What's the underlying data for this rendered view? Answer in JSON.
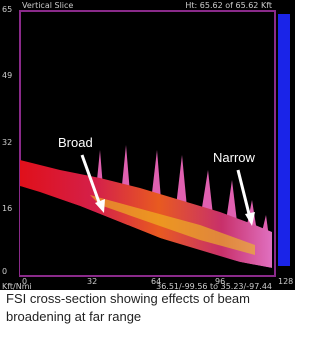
{
  "header": {
    "title": "Vertical Slice",
    "height": "Ht: 65.62 of 65.62 Kft"
  },
  "y_labels": [
    "65",
    "49",
    "32",
    "16",
    "0"
  ],
  "x_labels": [
    "0",
    "32",
    "64",
    "96",
    "128"
  ],
  "units": "Kft/Nmi",
  "coordinates": "36.51/-99.56 to 35.23/-97.44",
  "annotations": [
    "Broad",
    "Narrow"
  ],
  "caption": "FSI cross-section showing effects of beam broadening at far range"
}
